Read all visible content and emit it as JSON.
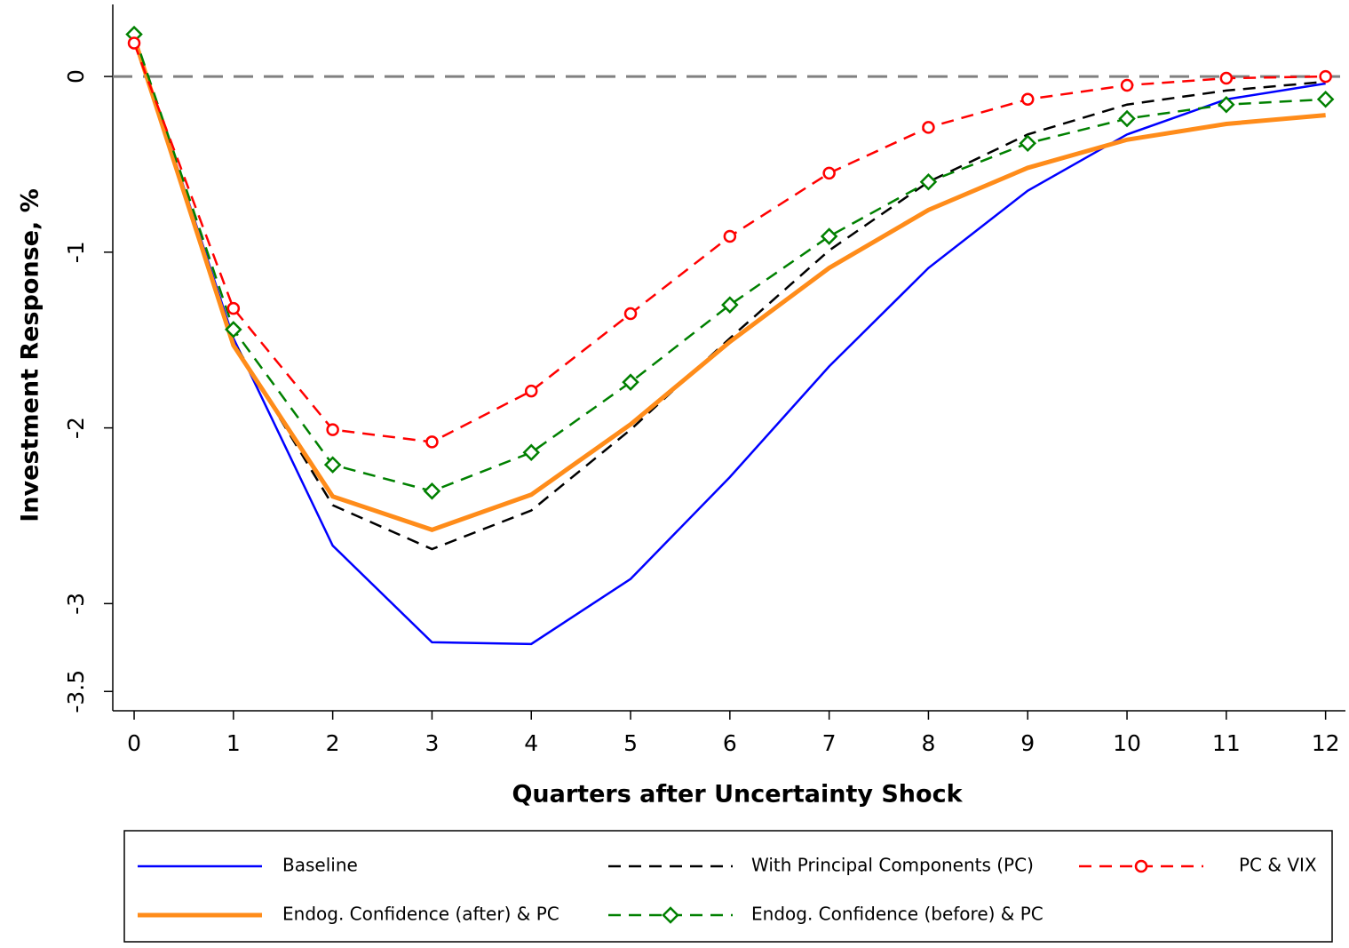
{
  "chart_data": {
    "type": "line",
    "y_label": "Investment Response, %",
    "x_label": "Quarters after Uncertainty Shock",
    "x": [
      0,
      1,
      2,
      3,
      4,
      5,
      6,
      7,
      8,
      9,
      10,
      11,
      12
    ],
    "xlim": [
      -0.215,
      12.2
    ],
    "xticks": [
      0,
      1,
      2,
      3,
      4,
      5,
      6,
      7,
      8,
      9,
      10,
      11,
      12
    ],
    "ylim": [
      -3.61,
      0.41
    ],
    "yticks": [
      0,
      -1,
      -2,
      -3,
      -3.5
    ],
    "reference_line": 0,
    "series": [
      {
        "name": "Baseline",
        "color": "#0000ff",
        "width": 2.5,
        "dash": false,
        "marker": null,
        "values": [
          0.23,
          -1.49,
          -2.67,
          -3.22,
          -3.23,
          -2.86,
          -2.28,
          -1.65,
          -1.09,
          -0.65,
          -0.33,
          -0.13,
          -0.04
        ]
      },
      {
        "name": "With Principal Components (PC)",
        "color": "#000000",
        "width": 2.5,
        "dash": true,
        "marker": null,
        "values": [
          0.22,
          -1.51,
          -2.44,
          -2.69,
          -2.47,
          -2.01,
          -1.49,
          -0.99,
          -0.6,
          -0.33,
          -0.16,
          -0.08,
          -0.03
        ]
      },
      {
        "name": "PC & VIX",
        "color": "#ff0000",
        "width": 2.5,
        "dash": true,
        "marker": "circle",
        "values": [
          0.19,
          -1.32,
          -2.01,
          -2.08,
          -1.79,
          -1.35,
          -0.91,
          -0.55,
          -0.29,
          -0.13,
          -0.05,
          -0.01,
          0.0
        ]
      },
      {
        "name": "Endog. Confidence (after) & PC",
        "color": "#ff8c1a",
        "width": 5,
        "dash": false,
        "marker": null,
        "values": [
          0.22,
          -1.53,
          -2.39,
          -2.58,
          -2.38,
          -1.98,
          -1.51,
          -1.09,
          -0.76,
          -0.52,
          -0.36,
          -0.27,
          -0.22
        ]
      },
      {
        "name": "Endog. Confidence (before) & PC",
        "color": "#008000",
        "width": 2.5,
        "dash": true,
        "marker": "diamond",
        "values": [
          0.24,
          -1.44,
          -2.21,
          -2.36,
          -2.14,
          -1.74,
          -1.3,
          -0.91,
          -0.6,
          -0.38,
          -0.24,
          -0.16,
          -0.13
        ]
      }
    ]
  }
}
